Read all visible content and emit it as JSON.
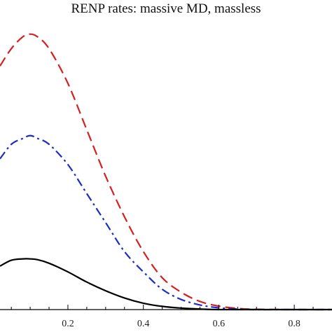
{
  "chart_data": {
    "type": "line",
    "title": "RENP rates: massive MD, massless",
    "xlabel": "",
    "ylabel": "",
    "xlim": [
      0.02,
      0.9
    ],
    "ylim": [
      0,
      1.0
    ],
    "x_ticks": [
      "0.2",
      "0.4",
      "0.6",
      "0.8"
    ],
    "x_tick_values": [
      0.2,
      0.4,
      0.6,
      0.8
    ],
    "grid": false,
    "series": [
      {
        "style": "dashed",
        "color": "#d62020",
        "points": [
          [
            0.02,
            0.84
          ],
          [
            0.05,
            0.9
          ],
          [
            0.08,
            0.94
          ],
          [
            0.1,
            0.95
          ],
          [
            0.12,
            0.94
          ],
          [
            0.15,
            0.9
          ],
          [
            0.2,
            0.78
          ],
          [
            0.25,
            0.62
          ],
          [
            0.3,
            0.46
          ],
          [
            0.35,
            0.32
          ],
          [
            0.4,
            0.2
          ],
          [
            0.45,
            0.11
          ],
          [
            0.5,
            0.06
          ],
          [
            0.55,
            0.028
          ],
          [
            0.6,
            0.012
          ],
          [
            0.65,
            0.004
          ],
          [
            0.7,
            0.001
          ],
          [
            0.8,
            0.0
          ],
          [
            0.9,
            0.0
          ]
        ]
      },
      {
        "style": "dash-dot",
        "color": "#1a2ec4",
        "points": [
          [
            0.02,
            0.52
          ],
          [
            0.05,
            0.57
          ],
          [
            0.08,
            0.59
          ],
          [
            0.1,
            0.6
          ],
          [
            0.12,
            0.59
          ],
          [
            0.15,
            0.57
          ],
          [
            0.2,
            0.5
          ],
          [
            0.25,
            0.4
          ],
          [
            0.3,
            0.3
          ],
          [
            0.35,
            0.2
          ],
          [
            0.4,
            0.13
          ],
          [
            0.45,
            0.07
          ],
          [
            0.5,
            0.035
          ],
          [
            0.55,
            0.016
          ],
          [
            0.6,
            0.006
          ],
          [
            0.65,
            0.002
          ],
          [
            0.7,
            0.0
          ],
          [
            0.8,
            0.0
          ],
          [
            0.9,
            0.0
          ]
        ]
      },
      {
        "style": "solid",
        "color": "#000000",
        "points": [
          [
            0.02,
            0.15
          ],
          [
            0.05,
            0.17
          ],
          [
            0.08,
            0.175
          ],
          [
            0.1,
            0.175
          ],
          [
            0.12,
            0.172
          ],
          [
            0.15,
            0.16
          ],
          [
            0.2,
            0.13
          ],
          [
            0.25,
            0.095
          ],
          [
            0.3,
            0.065
          ],
          [
            0.35,
            0.04
          ],
          [
            0.4,
            0.022
          ],
          [
            0.45,
            0.011
          ],
          [
            0.5,
            0.005
          ],
          [
            0.55,
            0.002
          ],
          [
            0.6,
            0.0
          ],
          [
            0.7,
            0.0
          ],
          [
            0.8,
            0.0
          ],
          [
            0.9,
            0.0
          ]
        ]
      }
    ]
  }
}
